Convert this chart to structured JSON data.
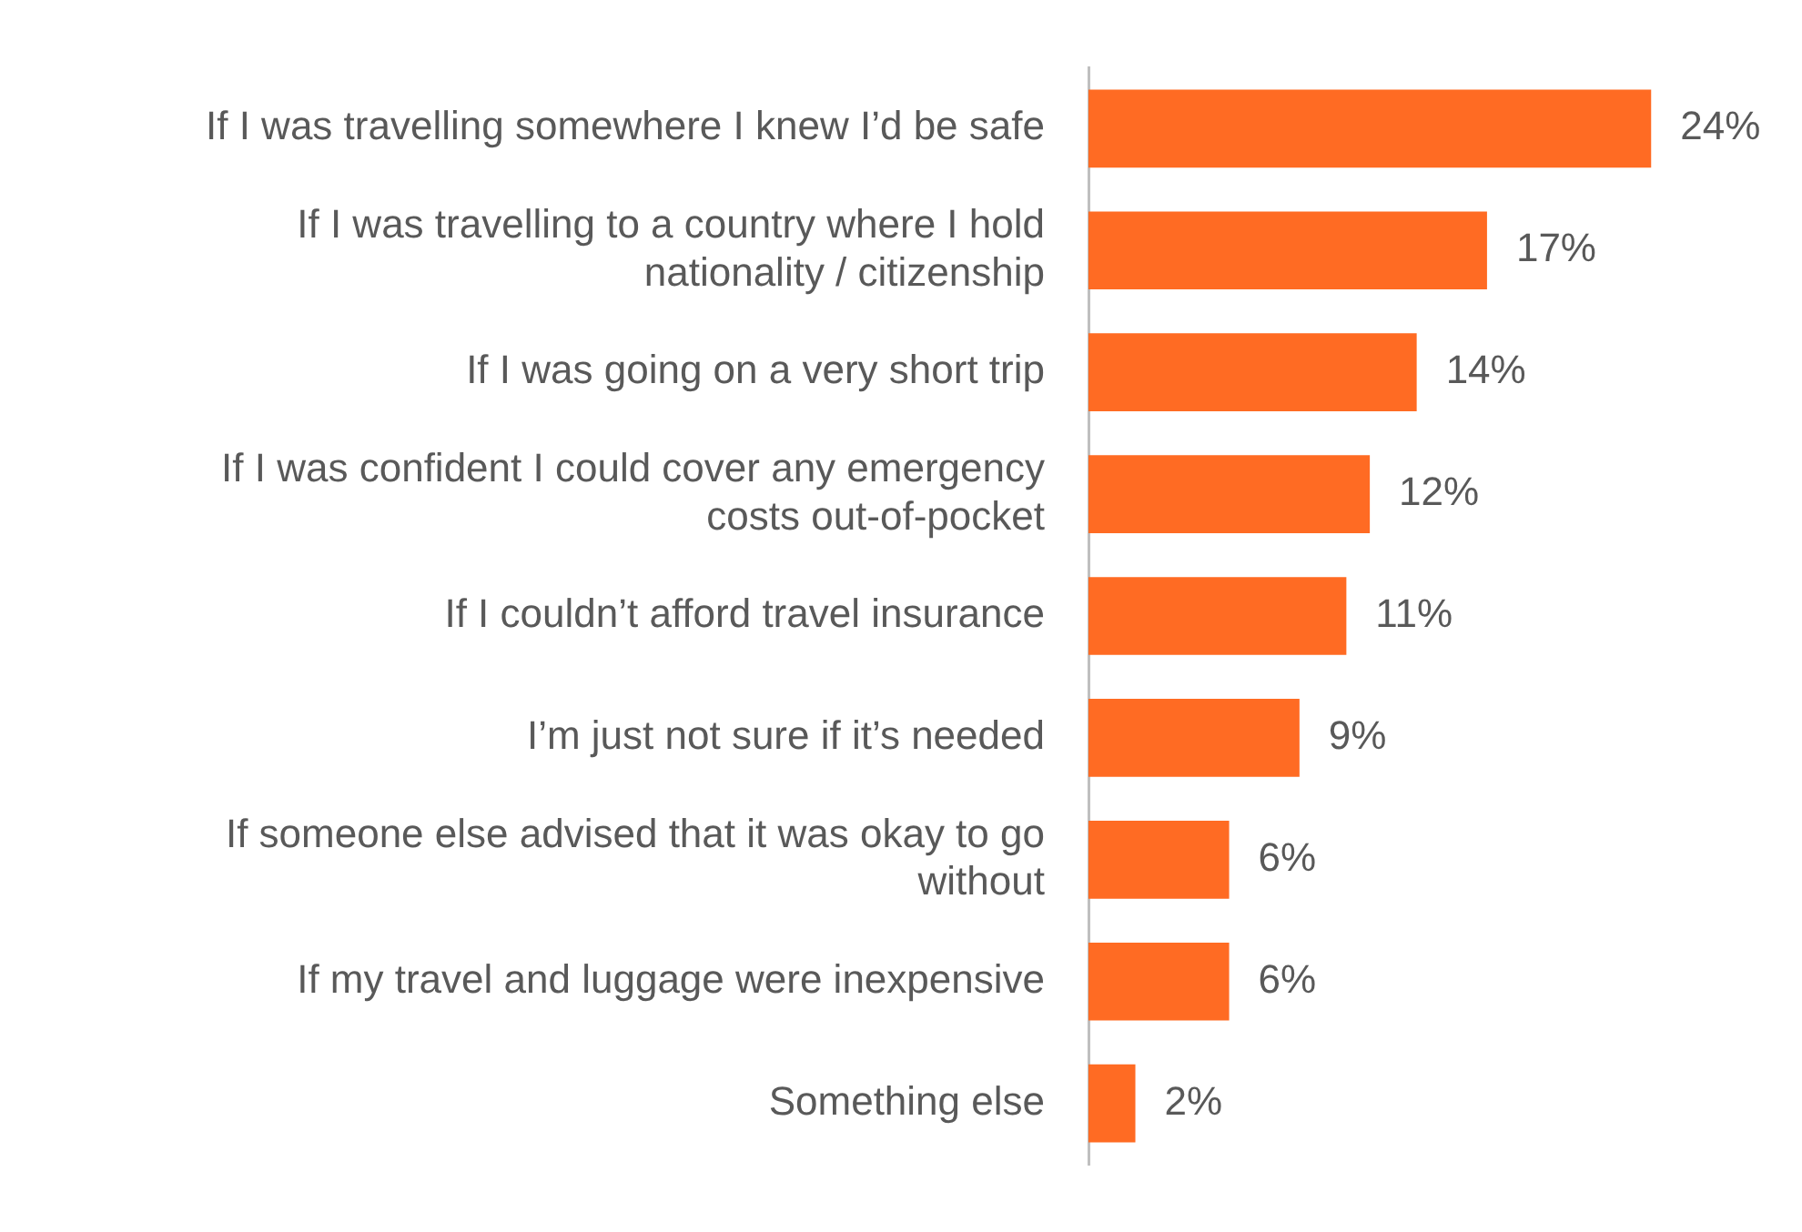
{
  "chart_data": {
    "type": "bar",
    "orientation": "horizontal",
    "categories": [
      "If I was travelling somewhere I knew I’d be safe",
      "If I was travelling to a country where I hold nationality / citizenship",
      "If I was going on a very short trip",
      "If I was confident I could cover any emergency costs out-of-pocket",
      "If I couldn’t afford travel insurance",
      "I’m just not sure if it’s needed",
      "If someone else advised that it was okay to go without",
      "If my travel and luggage were inexpensive",
      "Something else"
    ],
    "values": [
      24,
      17,
      14,
      12,
      11,
      9,
      6,
      6,
      2
    ],
    "value_labels": [
      "24%",
      "17%",
      "14%",
      "12%",
      "11%",
      "9%",
      "6%",
      "6%",
      "2%"
    ],
    "color": "#ff6b23",
    "grid": false,
    "legend": false
  }
}
